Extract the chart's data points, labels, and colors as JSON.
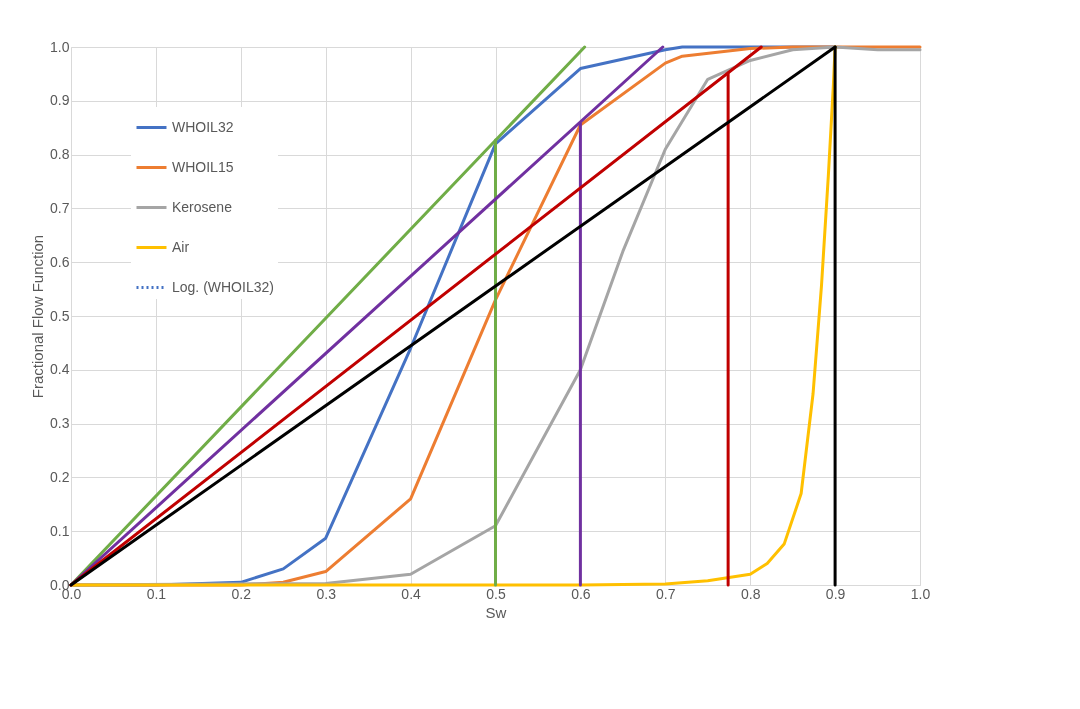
{
  "chart_data": {
    "type": "line",
    "xlabel": "Sw",
    "ylabel": "Fractional Flow Function",
    "xlim": [
      0,
      1
    ],
    "ylim": [
      0,
      1
    ],
    "xticks": [
      {
        "value": 0,
        "label": "0.0"
      },
      {
        "value": 0.1,
        "label": "0.1"
      },
      {
        "value": 0.2,
        "label": "0.2"
      },
      {
        "value": 0.3,
        "label": "0.3"
      },
      {
        "value": 0.4,
        "label": "0.4"
      },
      {
        "value": 0.5,
        "label": "0.5"
      },
      {
        "value": 0.6,
        "label": "0.6"
      },
      {
        "value": 0.7,
        "label": "0.7"
      },
      {
        "value": 0.8,
        "label": "0.8"
      },
      {
        "value": 0.9,
        "label": "0.9"
      },
      {
        "value": 1,
        "label": "1.0"
      }
    ],
    "yticks": [
      {
        "value": 0,
        "label": "0.0"
      },
      {
        "value": 0.1,
        "label": "0.1"
      },
      {
        "value": 0.2,
        "label": "0.2"
      },
      {
        "value": 0.3,
        "label": "0.3"
      },
      {
        "value": 0.4,
        "label": "0.4"
      },
      {
        "value": 0.5,
        "label": "0.5"
      },
      {
        "value": 0.6,
        "label": "0.6"
      },
      {
        "value": 0.7,
        "label": "0.7"
      },
      {
        "value": 0.8,
        "label": "0.8"
      },
      {
        "value": 0.9,
        "label": "0.9"
      },
      {
        "value": 1,
        "label": "1.0"
      }
    ],
    "grid": true,
    "legend": "top left",
    "marker": "none",
    "series": [
      {
        "name": "WHOIL32",
        "color": "#4472c4",
        "x": [
          0,
          0.1,
          0.2,
          0.25,
          0.3,
          0.4,
          0.5,
          0.6,
          0.7,
          0.72,
          0.8,
          0.9
        ],
        "values": [
          0,
          0,
          0.005,
          0.03,
          0.087,
          0.44,
          0.82,
          0.96,
          0.995,
          1,
          1,
          1
        ]
      },
      {
        "name": "WHOIL15",
        "color": "#ed7d31",
        "x": [
          0,
          0.2,
          0.25,
          0.3,
          0.4,
          0.5,
          0.6,
          0.7,
          0.72,
          0.8,
          0.85,
          1.0
        ],
        "values": [
          0,
          0,
          0.005,
          0.025,
          0.16,
          0.53,
          0.855,
          0.97,
          0.983,
          0.997,
          1,
          1
        ]
      },
      {
        "name": "Kerosene",
        "color": "#a5a5a5",
        "x": [
          0,
          0.3,
          0.4,
          0.5,
          0.6,
          0.65,
          0.7,
          0.75,
          0.8,
          0.85,
          0.9,
          0.95,
          1.0
        ],
        "values": [
          0,
          0.003,
          0.02,
          0.11,
          0.4,
          0.62,
          0.81,
          0.94,
          0.975,
          0.995,
          1,
          0.995,
          0.995
        ]
      },
      {
        "name": "Air",
        "color": "#ffc000",
        "x": [
          0,
          0.6,
          0.7,
          0.75,
          0.8,
          0.82,
          0.84,
          0.86,
          0.874,
          0.884,
          0.892,
          0.898,
          0.9
        ],
        "values": [
          0,
          0,
          0.002,
          0.008,
          0.02,
          0.04,
          0.076,
          0.17,
          0.355,
          0.557,
          0.76,
          0.93,
          1.0
        ]
      },
      {
        "name": "Log. (WHOIL32)",
        "color": "#4472c4",
        "line_style": "dotted"
      },
      {
        "color": "#70ad47",
        "x": [
          0,
          0.605
        ],
        "values": [
          0,
          1
        ]
      },
      {
        "color": "#70ad47",
        "x": [
          0.5,
          0.5
        ],
        "values": [
          0.827,
          0
        ]
      },
      {
        "color": "#7030a0",
        "x": [
          0,
          0.697
        ],
        "values": [
          0,
          1
        ]
      },
      {
        "color": "#7030a0",
        "x": [
          0.6,
          0.6
        ],
        "values": [
          0.858,
          0
        ]
      },
      {
        "color": "#c00000",
        "x": [
          0,
          0.813
        ],
        "values": [
          0,
          1
        ]
      },
      {
        "color": "#c00000",
        "x": [
          0.774,
          0.774
        ],
        "values": [
          0.95,
          0
        ]
      },
      {
        "color": "#000000",
        "x": [
          0,
          0.9
        ],
        "values": [
          0,
          1
        ]
      },
      {
        "color": "#000000",
        "x": [
          0.9,
          0.9
        ],
        "values": [
          1,
          0
        ]
      }
    ]
  }
}
